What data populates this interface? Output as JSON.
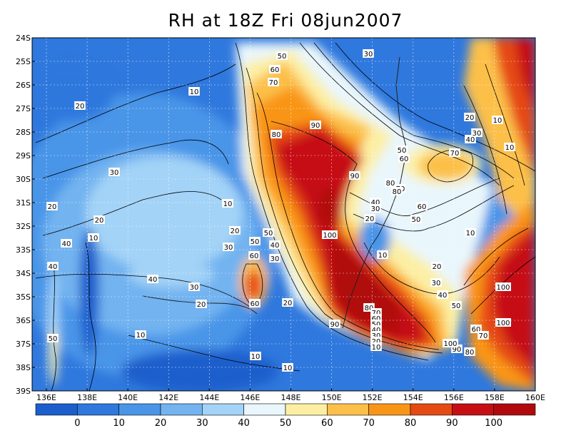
{
  "title": "RH at 18Z Fri 08jun2007",
  "lat_labels": [
    "24S",
    "25S",
    "26S",
    "27S",
    "28S",
    "29S",
    "30S",
    "31S",
    "32S",
    "33S",
    "34S",
    "35S",
    "36S",
    "37S",
    "38S",
    "39S"
  ],
  "lon_labels": [
    "136E",
    "138E",
    "140E",
    "142E",
    "144E",
    "146E",
    "148E",
    "150E",
    "152E",
    "154E",
    "156E",
    "158E",
    "160E"
  ],
  "colorbar": {
    "colors": [
      "#1c5ecc",
      "#2f78dd",
      "#4a95e8",
      "#72b3f0",
      "#a3d3f7",
      "#e9f6fb",
      "#fcefa4",
      "#fcc04a",
      "#f99516",
      "#e54a14",
      "#c60f14",
      "#b00a0e"
    ],
    "labels": [
      "0",
      "10",
      "20",
      "30",
      "40",
      "50",
      "60",
      "70",
      "80",
      "90",
      "100"
    ]
  },
  "contour_labels": [
    "50",
    "60",
    "70",
    "80",
    "90",
    "10",
    "20",
    "30",
    "100",
    "40"
  ]
}
